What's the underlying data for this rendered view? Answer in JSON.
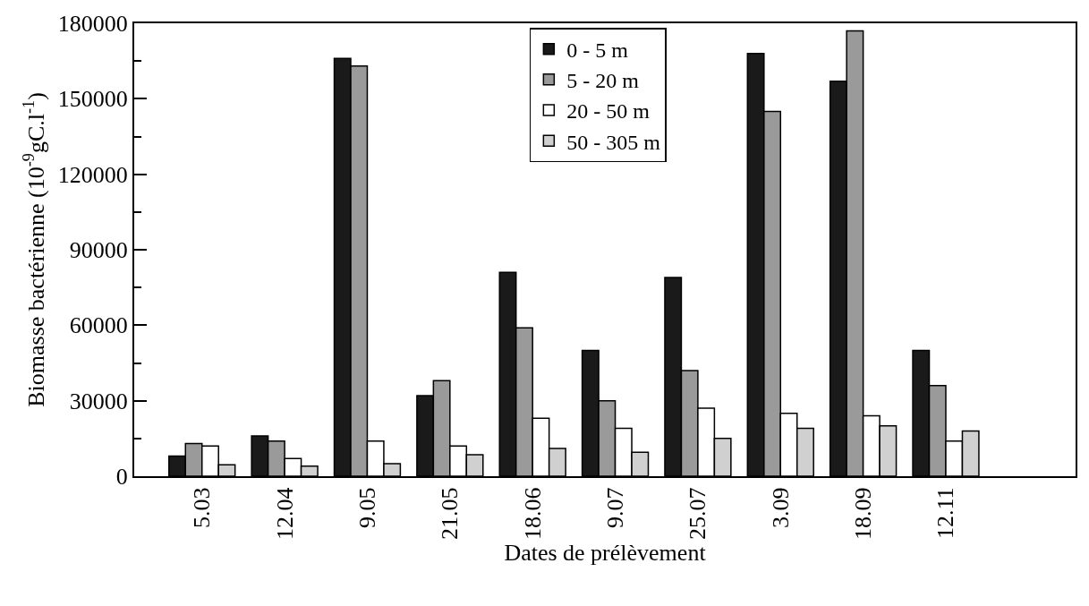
{
  "chart_data": {
    "type": "bar",
    "xlabel": "Dates de prélèvement",
    "ylabel": "Biomasse bactérienne (10$^{-9}$gC.l$^{-1}$)",
    "categories": [
      "5.03",
      "12.04",
      "9.05",
      "21.05",
      "18.06",
      "9.07",
      "25.07",
      "3.09",
      "18.09",
      "12.11"
    ],
    "series": [
      {
        "name": "0 - 5 m",
        "color": "#1a1a1a",
        "values": [
          8000,
          16000,
          166000,
          32000,
          81000,
          50000,
          79000,
          168000,
          157000,
          50000
        ]
      },
      {
        "name": "5 - 20 m",
        "color": "#9a9a9a",
        "values": [
          13000,
          14000,
          163000,
          38000,
          59000,
          30000,
          42000,
          145000,
          177000,
          36000
        ]
      },
      {
        "name": "20 - 50 m",
        "color": "#ffffff",
        "values": [
          12000,
          7000,
          14000,
          12000,
          23000,
          19000,
          27000,
          25000,
          24000,
          14000
        ]
      },
      {
        "name": "50 - 305 m",
        "color": "#d0d0d0",
        "values": [
          4500,
          4000,
          5000,
          8500,
          11000,
          9500,
          15000,
          19000,
          20000,
          18000
        ]
      }
    ],
    "ylim": [
      0,
      180000
    ],
    "yticks": [
      0,
      30000,
      60000,
      90000,
      120000,
      150000,
      180000
    ],
    "grid": false,
    "legend": "top"
  }
}
